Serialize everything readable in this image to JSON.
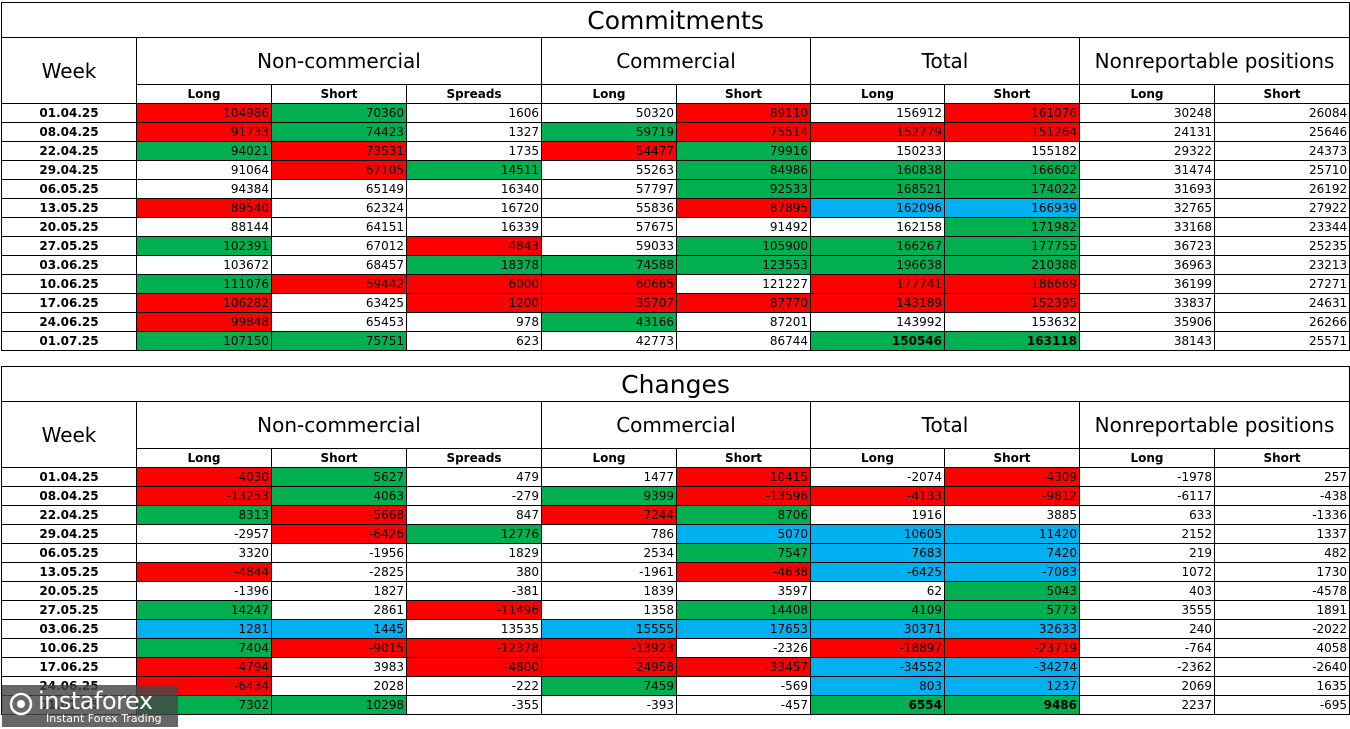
{
  "commitments": {
    "title": "Commitments",
    "week_label": "Week",
    "groups": [
      "Non-commercial",
      "Commercial",
      "Total",
      "Nonreportable positions"
    ],
    "sub": [
      "Long",
      "Short",
      "Spreads",
      "Long",
      "Short",
      "Long",
      "Short",
      "Long",
      "Short"
    ],
    "rows": [
      {
        "week": "01.04.25",
        "cells": [
          [
            "104986",
            "r"
          ],
          [
            "70360",
            "g"
          ],
          [
            "1606",
            "w"
          ],
          [
            "50320",
            "w"
          ],
          [
            "89110",
            "r"
          ],
          [
            "156912",
            "w"
          ],
          [
            "161076",
            "r"
          ],
          [
            "30248",
            "w"
          ],
          [
            "26084",
            "w"
          ]
        ]
      },
      {
        "week": "08.04.25",
        "cells": [
          [
            "91733",
            "r"
          ],
          [
            "74423",
            "g"
          ],
          [
            "1327",
            "w"
          ],
          [
            "59719",
            "g"
          ],
          [
            "75514",
            "r"
          ],
          [
            "152779",
            "r"
          ],
          [
            "151264",
            "r"
          ],
          [
            "24131",
            "w"
          ],
          [
            "25646",
            "w"
          ]
        ]
      },
      {
        "week": "22.04.25",
        "cells": [
          [
            "94021",
            "g"
          ],
          [
            "73531",
            "r"
          ],
          [
            "1735",
            "w"
          ],
          [
            "54477",
            "r"
          ],
          [
            "79916",
            "g"
          ],
          [
            "150233",
            "w"
          ],
          [
            "155182",
            "w"
          ],
          [
            "29322",
            "w"
          ],
          [
            "24373",
            "w"
          ]
        ]
      },
      {
        "week": "29.04.25",
        "cells": [
          [
            "91064",
            "w"
          ],
          [
            "67105",
            "r"
          ],
          [
            "14511",
            "g"
          ],
          [
            "55263",
            "w"
          ],
          [
            "84986",
            "g"
          ],
          [
            "160838",
            "g"
          ],
          [
            "166602",
            "g"
          ],
          [
            "31474",
            "w"
          ],
          [
            "25710",
            "w"
          ]
        ]
      },
      {
        "week": "06.05.25",
        "cells": [
          [
            "94384",
            "w"
          ],
          [
            "65149",
            "w"
          ],
          [
            "16340",
            "w"
          ],
          [
            "57797",
            "w"
          ],
          [
            "92533",
            "g"
          ],
          [
            "168521",
            "g"
          ],
          [
            "174022",
            "g"
          ],
          [
            "31693",
            "w"
          ],
          [
            "26192",
            "w"
          ]
        ]
      },
      {
        "week": "13.05.25",
        "cells": [
          [
            "89540",
            "r"
          ],
          [
            "62324",
            "w"
          ],
          [
            "16720",
            "w"
          ],
          [
            "55836",
            "w"
          ],
          [
            "87895",
            "r"
          ],
          [
            "162096",
            "b"
          ],
          [
            "166939",
            "b"
          ],
          [
            "32765",
            "w"
          ],
          [
            "27922",
            "w"
          ]
        ]
      },
      {
        "week": "20.05.25",
        "cells": [
          [
            "88144",
            "w"
          ],
          [
            "64151",
            "w"
          ],
          [
            "16339",
            "w"
          ],
          [
            "57675",
            "w"
          ],
          [
            "91492",
            "w"
          ],
          [
            "162158",
            "w"
          ],
          [
            "171982",
            "g"
          ],
          [
            "33168",
            "w"
          ],
          [
            "23344",
            "w"
          ]
        ]
      },
      {
        "week": "27.05.25",
        "cells": [
          [
            "102391",
            "g"
          ],
          [
            "67012",
            "w"
          ],
          [
            "4843",
            "r"
          ],
          [
            "59033",
            "w"
          ],
          [
            "105900",
            "g"
          ],
          [
            "166267",
            "g"
          ],
          [
            "177755",
            "g"
          ],
          [
            "36723",
            "w"
          ],
          [
            "25235",
            "w"
          ]
        ]
      },
      {
        "week": "03.06.25",
        "cells": [
          [
            "103672",
            "w"
          ],
          [
            "68457",
            "w"
          ],
          [
            "18378",
            "g"
          ],
          [
            "74588",
            "g"
          ],
          [
            "123553",
            "g"
          ],
          [
            "196638",
            "g"
          ],
          [
            "210388",
            "g"
          ],
          [
            "36963",
            "w"
          ],
          [
            "23213",
            "w"
          ]
        ]
      },
      {
        "week": "10.06.25",
        "cells": [
          [
            "111076",
            "g"
          ],
          [
            "59442",
            "r"
          ],
          [
            "6000",
            "r"
          ],
          [
            "60665",
            "r"
          ],
          [
            "121227",
            "w"
          ],
          [
            "177741",
            "r"
          ],
          [
            "186669",
            "r"
          ],
          [
            "36199",
            "w"
          ],
          [
            "27271",
            "w"
          ]
        ]
      },
      {
        "week": "17.06.25",
        "cells": [
          [
            "106282",
            "r"
          ],
          [
            "63425",
            "w"
          ],
          [
            "1200",
            "r"
          ],
          [
            "35707",
            "r"
          ],
          [
            "87770",
            "r"
          ],
          [
            "143189",
            "r"
          ],
          [
            "152395",
            "r"
          ],
          [
            "33837",
            "w"
          ],
          [
            "24631",
            "w"
          ]
        ]
      },
      {
        "week": "24.06.25",
        "cells": [
          [
            "99848",
            "r"
          ],
          [
            "65453",
            "w"
          ],
          [
            "978",
            "w"
          ],
          [
            "43166",
            "g"
          ],
          [
            "87201",
            "w"
          ],
          [
            "143992",
            "w"
          ],
          [
            "153632",
            "w"
          ],
          [
            "35906",
            "w"
          ],
          [
            "26266",
            "w"
          ]
        ]
      },
      {
        "week": "01.07.25",
        "cells": [
          [
            "107150",
            "g"
          ],
          [
            "75751",
            "g"
          ],
          [
            "623",
            "w"
          ],
          [
            "42773",
            "w"
          ],
          [
            "86744",
            "w"
          ],
          [
            "150546",
            "gb"
          ],
          [
            "163118",
            "gb"
          ],
          [
            "38143",
            "w"
          ],
          [
            "25571",
            "w"
          ]
        ]
      }
    ]
  },
  "changes": {
    "title": "Changes",
    "week_label": "Week",
    "groups": [
      "Non-commercial",
      "Commercial",
      "Total",
      "Nonreportable positions"
    ],
    "sub": [
      "Long",
      "Short",
      "Spreads",
      "Long",
      "Short",
      "Long",
      "Short",
      "Long",
      "Short"
    ],
    "rows": [
      {
        "week": "01.04.25",
        "cells": [
          [
            "-4030",
            "r"
          ],
          [
            "5627",
            "g"
          ],
          [
            "479",
            "w"
          ],
          [
            "1477",
            "w"
          ],
          [
            "-10415",
            "r"
          ],
          [
            "-2074",
            "w"
          ],
          [
            "-4309",
            "r"
          ],
          [
            "-1978",
            "w"
          ],
          [
            "257",
            "w"
          ]
        ]
      },
      {
        "week": "08.04.25",
        "cells": [
          [
            "-13253",
            "r"
          ],
          [
            "4063",
            "g"
          ],
          [
            "-279",
            "w"
          ],
          [
            "9399",
            "g"
          ],
          [
            "-13596",
            "r"
          ],
          [
            "-4133",
            "r"
          ],
          [
            "-9812",
            "r"
          ],
          [
            "-6117",
            "w"
          ],
          [
            "-438",
            "w"
          ]
        ]
      },
      {
        "week": "22.04.25",
        "cells": [
          [
            "8313",
            "g"
          ],
          [
            "-5668",
            "r"
          ],
          [
            "847",
            "w"
          ],
          [
            "-7244",
            "r"
          ],
          [
            "8706",
            "g"
          ],
          [
            "1916",
            "w"
          ],
          [
            "3885",
            "w"
          ],
          [
            "633",
            "w"
          ],
          [
            "-1336",
            "w"
          ]
        ]
      },
      {
        "week": "29.04.25",
        "cells": [
          [
            "-2957",
            "w"
          ],
          [
            "-6426",
            "r"
          ],
          [
            "12776",
            "g"
          ],
          [
            "786",
            "w"
          ],
          [
            "5070",
            "b"
          ],
          [
            "10605",
            "b"
          ],
          [
            "11420",
            "b"
          ],
          [
            "2152",
            "w"
          ],
          [
            "1337",
            "w"
          ]
        ]
      },
      {
        "week": "06.05.25",
        "cells": [
          [
            "3320",
            "w"
          ],
          [
            "-1956",
            "w"
          ],
          [
            "1829",
            "w"
          ],
          [
            "2534",
            "w"
          ],
          [
            "7547",
            "g"
          ],
          [
            "7683",
            "b"
          ],
          [
            "7420",
            "b"
          ],
          [
            "219",
            "w"
          ],
          [
            "482",
            "w"
          ]
        ]
      },
      {
        "week": "13.05.25",
        "cells": [
          [
            "-4844",
            "r"
          ],
          [
            "-2825",
            "w"
          ],
          [
            "380",
            "w"
          ],
          [
            "-1961",
            "w"
          ],
          [
            "-4638",
            "r"
          ],
          [
            "-6425",
            "b"
          ],
          [
            "-7083",
            "b"
          ],
          [
            "1072",
            "w"
          ],
          [
            "1730",
            "w"
          ]
        ]
      },
      {
        "week": "20.05.25",
        "cells": [
          [
            "-1396",
            "w"
          ],
          [
            "1827",
            "w"
          ],
          [
            "-381",
            "w"
          ],
          [
            "1839",
            "w"
          ],
          [
            "3597",
            "w"
          ],
          [
            "62",
            "w"
          ],
          [
            "5043",
            "g"
          ],
          [
            "403",
            "w"
          ],
          [
            "-4578",
            "w"
          ]
        ]
      },
      {
        "week": "27.05.25",
        "cells": [
          [
            "14247",
            "g"
          ],
          [
            "2861",
            "w"
          ],
          [
            "-11496",
            "r"
          ],
          [
            "1358",
            "w"
          ],
          [
            "14408",
            "g"
          ],
          [
            "4109",
            "g"
          ],
          [
            "5773",
            "g"
          ],
          [
            "3555",
            "w"
          ],
          [
            "1891",
            "w"
          ]
        ]
      },
      {
        "week": "03.06.25",
        "cells": [
          [
            "1281",
            "b"
          ],
          [
            "1445",
            "b"
          ],
          [
            "13535",
            "w"
          ],
          [
            "15555",
            "b"
          ],
          [
            "17653",
            "b"
          ],
          [
            "30371",
            "b"
          ],
          [
            "32633",
            "b"
          ],
          [
            "240",
            "w"
          ],
          [
            "-2022",
            "w"
          ]
        ]
      },
      {
        "week": "10.06.25",
        "cells": [
          [
            "7404",
            "g"
          ],
          [
            "-9015",
            "r"
          ],
          [
            "-12378",
            "r"
          ],
          [
            "-13923",
            "r"
          ],
          [
            "-2326",
            "w"
          ],
          [
            "-18897",
            "r"
          ],
          [
            "-23719",
            "r"
          ],
          [
            "-764",
            "w"
          ],
          [
            "4058",
            "w"
          ]
        ]
      },
      {
        "week": "17.06.25",
        "cells": [
          [
            "-4794",
            "r"
          ],
          [
            "3983",
            "w"
          ],
          [
            "-4800",
            "r"
          ],
          [
            "-24958",
            "r"
          ],
          [
            "-33457",
            "r"
          ],
          [
            "-34552",
            "b"
          ],
          [
            "-34274",
            "b"
          ],
          [
            "-2362",
            "w"
          ],
          [
            "-2640",
            "w"
          ]
        ]
      },
      {
        "week": "24.06.25",
        "cells": [
          [
            "-6434",
            "r"
          ],
          [
            "2028",
            "w"
          ],
          [
            "-222",
            "w"
          ],
          [
            "7459",
            "g"
          ],
          [
            "-569",
            "w"
          ],
          [
            "803",
            "b"
          ],
          [
            "1237",
            "b"
          ],
          [
            "2069",
            "w"
          ],
          [
            "1635",
            "w"
          ]
        ]
      },
      {
        "week": "01.07.25",
        "cells": [
          [
            "7302",
            "g"
          ],
          [
            "10298",
            "g"
          ],
          [
            "-355",
            "w"
          ],
          [
            "-393",
            "w"
          ],
          [
            "-457",
            "w"
          ],
          [
            "6554",
            "gb"
          ],
          [
            "9486",
            "gb"
          ],
          [
            "2237",
            "w"
          ],
          [
            "-695",
            "w"
          ]
        ]
      }
    ]
  },
  "watermark": {
    "brand": "instaforex",
    "tagline": "Instant Forex Trading",
    "icon": "instaforex-logo-icon"
  },
  "colors": {
    "red": "#ff0000",
    "green": "#00b050",
    "blue": "#00b0f0"
  }
}
